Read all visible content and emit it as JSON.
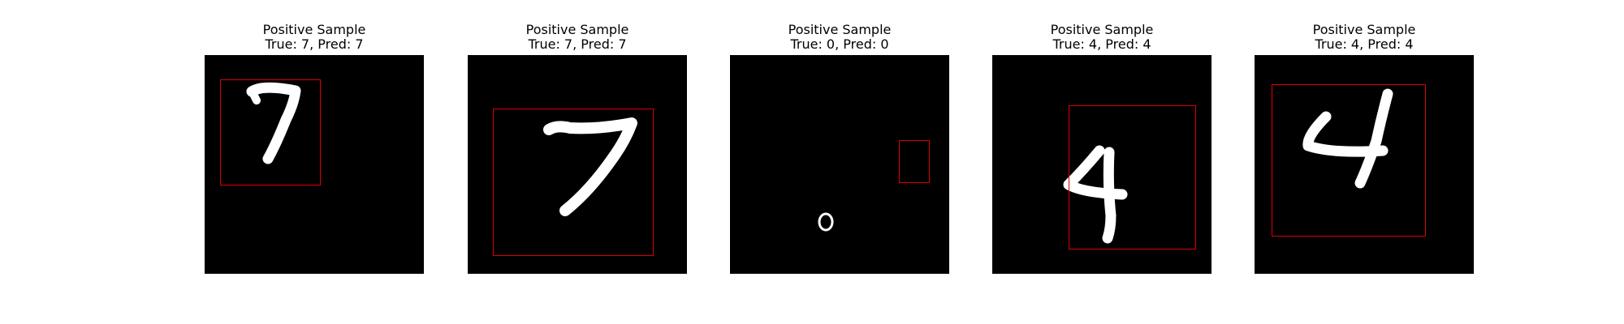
{
  "panels": [
    {
      "title": "Positive Sample",
      "subtitle": "True: 7, Pred: 7",
      "digit": "7",
      "true_label": 7,
      "pred_label": 7,
      "box_color": "#e00000",
      "digit_color": "#ffffff"
    },
    {
      "title": "Positive Sample",
      "subtitle": "True: 7, Pred: 7",
      "digit": "7",
      "true_label": 7,
      "pred_label": 7,
      "box_color": "#e00000",
      "digit_color": "#ffffff"
    },
    {
      "title": "Positive Sample",
      "subtitle": "True: 0, Pred: 0",
      "digit": "0",
      "true_label": 0,
      "pred_label": 0,
      "box_color": "#e00000",
      "digit_color": "#ffffff"
    },
    {
      "title": "Positive Sample",
      "subtitle": "True: 4, Pred: 4",
      "digit": "4",
      "true_label": 4,
      "pred_label": 4,
      "box_color": "#e00000",
      "digit_color": "#ffffff"
    },
    {
      "title": "Positive Sample",
      "subtitle": "True: 4, Pred: 4",
      "digit": "4",
      "true_label": 4,
      "pred_label": 4,
      "box_color": "#e00000",
      "digit_color": "#ffffff"
    }
  ]
}
